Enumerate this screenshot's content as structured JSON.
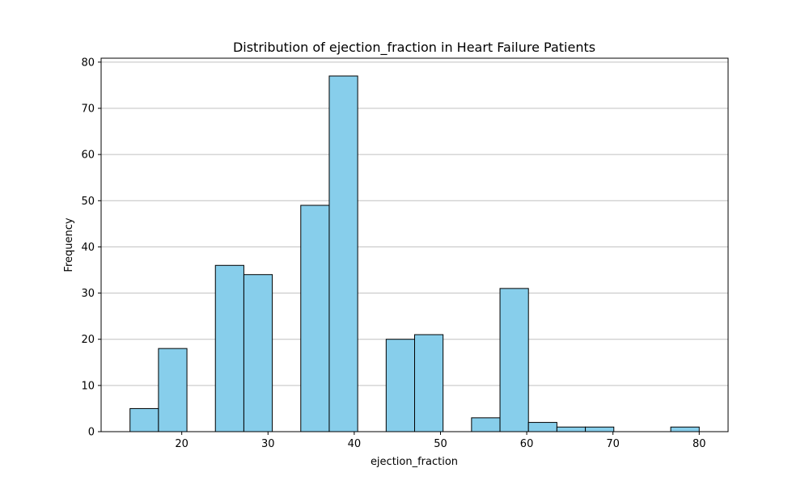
{
  "chart_data": {
    "type": "bar",
    "title": "Distribution of ejection_fraction in Heart Failure Patients",
    "xlabel": "ejection_fraction",
    "ylabel": "Frequency",
    "xlim": [
      10.65,
      83.35
    ],
    "ylim": [
      0,
      80.85
    ],
    "xticks": [
      20,
      30,
      40,
      50,
      60,
      70,
      80
    ],
    "yticks": [
      0,
      10,
      20,
      30,
      40,
      50,
      60,
      70,
      80
    ],
    "grid": "y",
    "bin_edges": [
      14,
      17.3,
      20.6,
      23.9,
      27.2,
      30.5,
      33.8,
      37.1,
      40.4,
      43.7,
      47.0,
      50.3,
      53.6,
      56.9,
      60.2,
      63.5,
      66.8,
      70.1,
      73.4,
      76.7,
      80
    ],
    "values": [
      5,
      18,
      0,
      36,
      34,
      0,
      49,
      77,
      0,
      20,
      21,
      0,
      3,
      31,
      2,
      1,
      1,
      0,
      0,
      1
    ],
    "colors": {
      "bar_fill": "#87ceeb",
      "bar_edge": "#000000",
      "grid": "#c0c0c0",
      "axis": "#000000"
    }
  }
}
